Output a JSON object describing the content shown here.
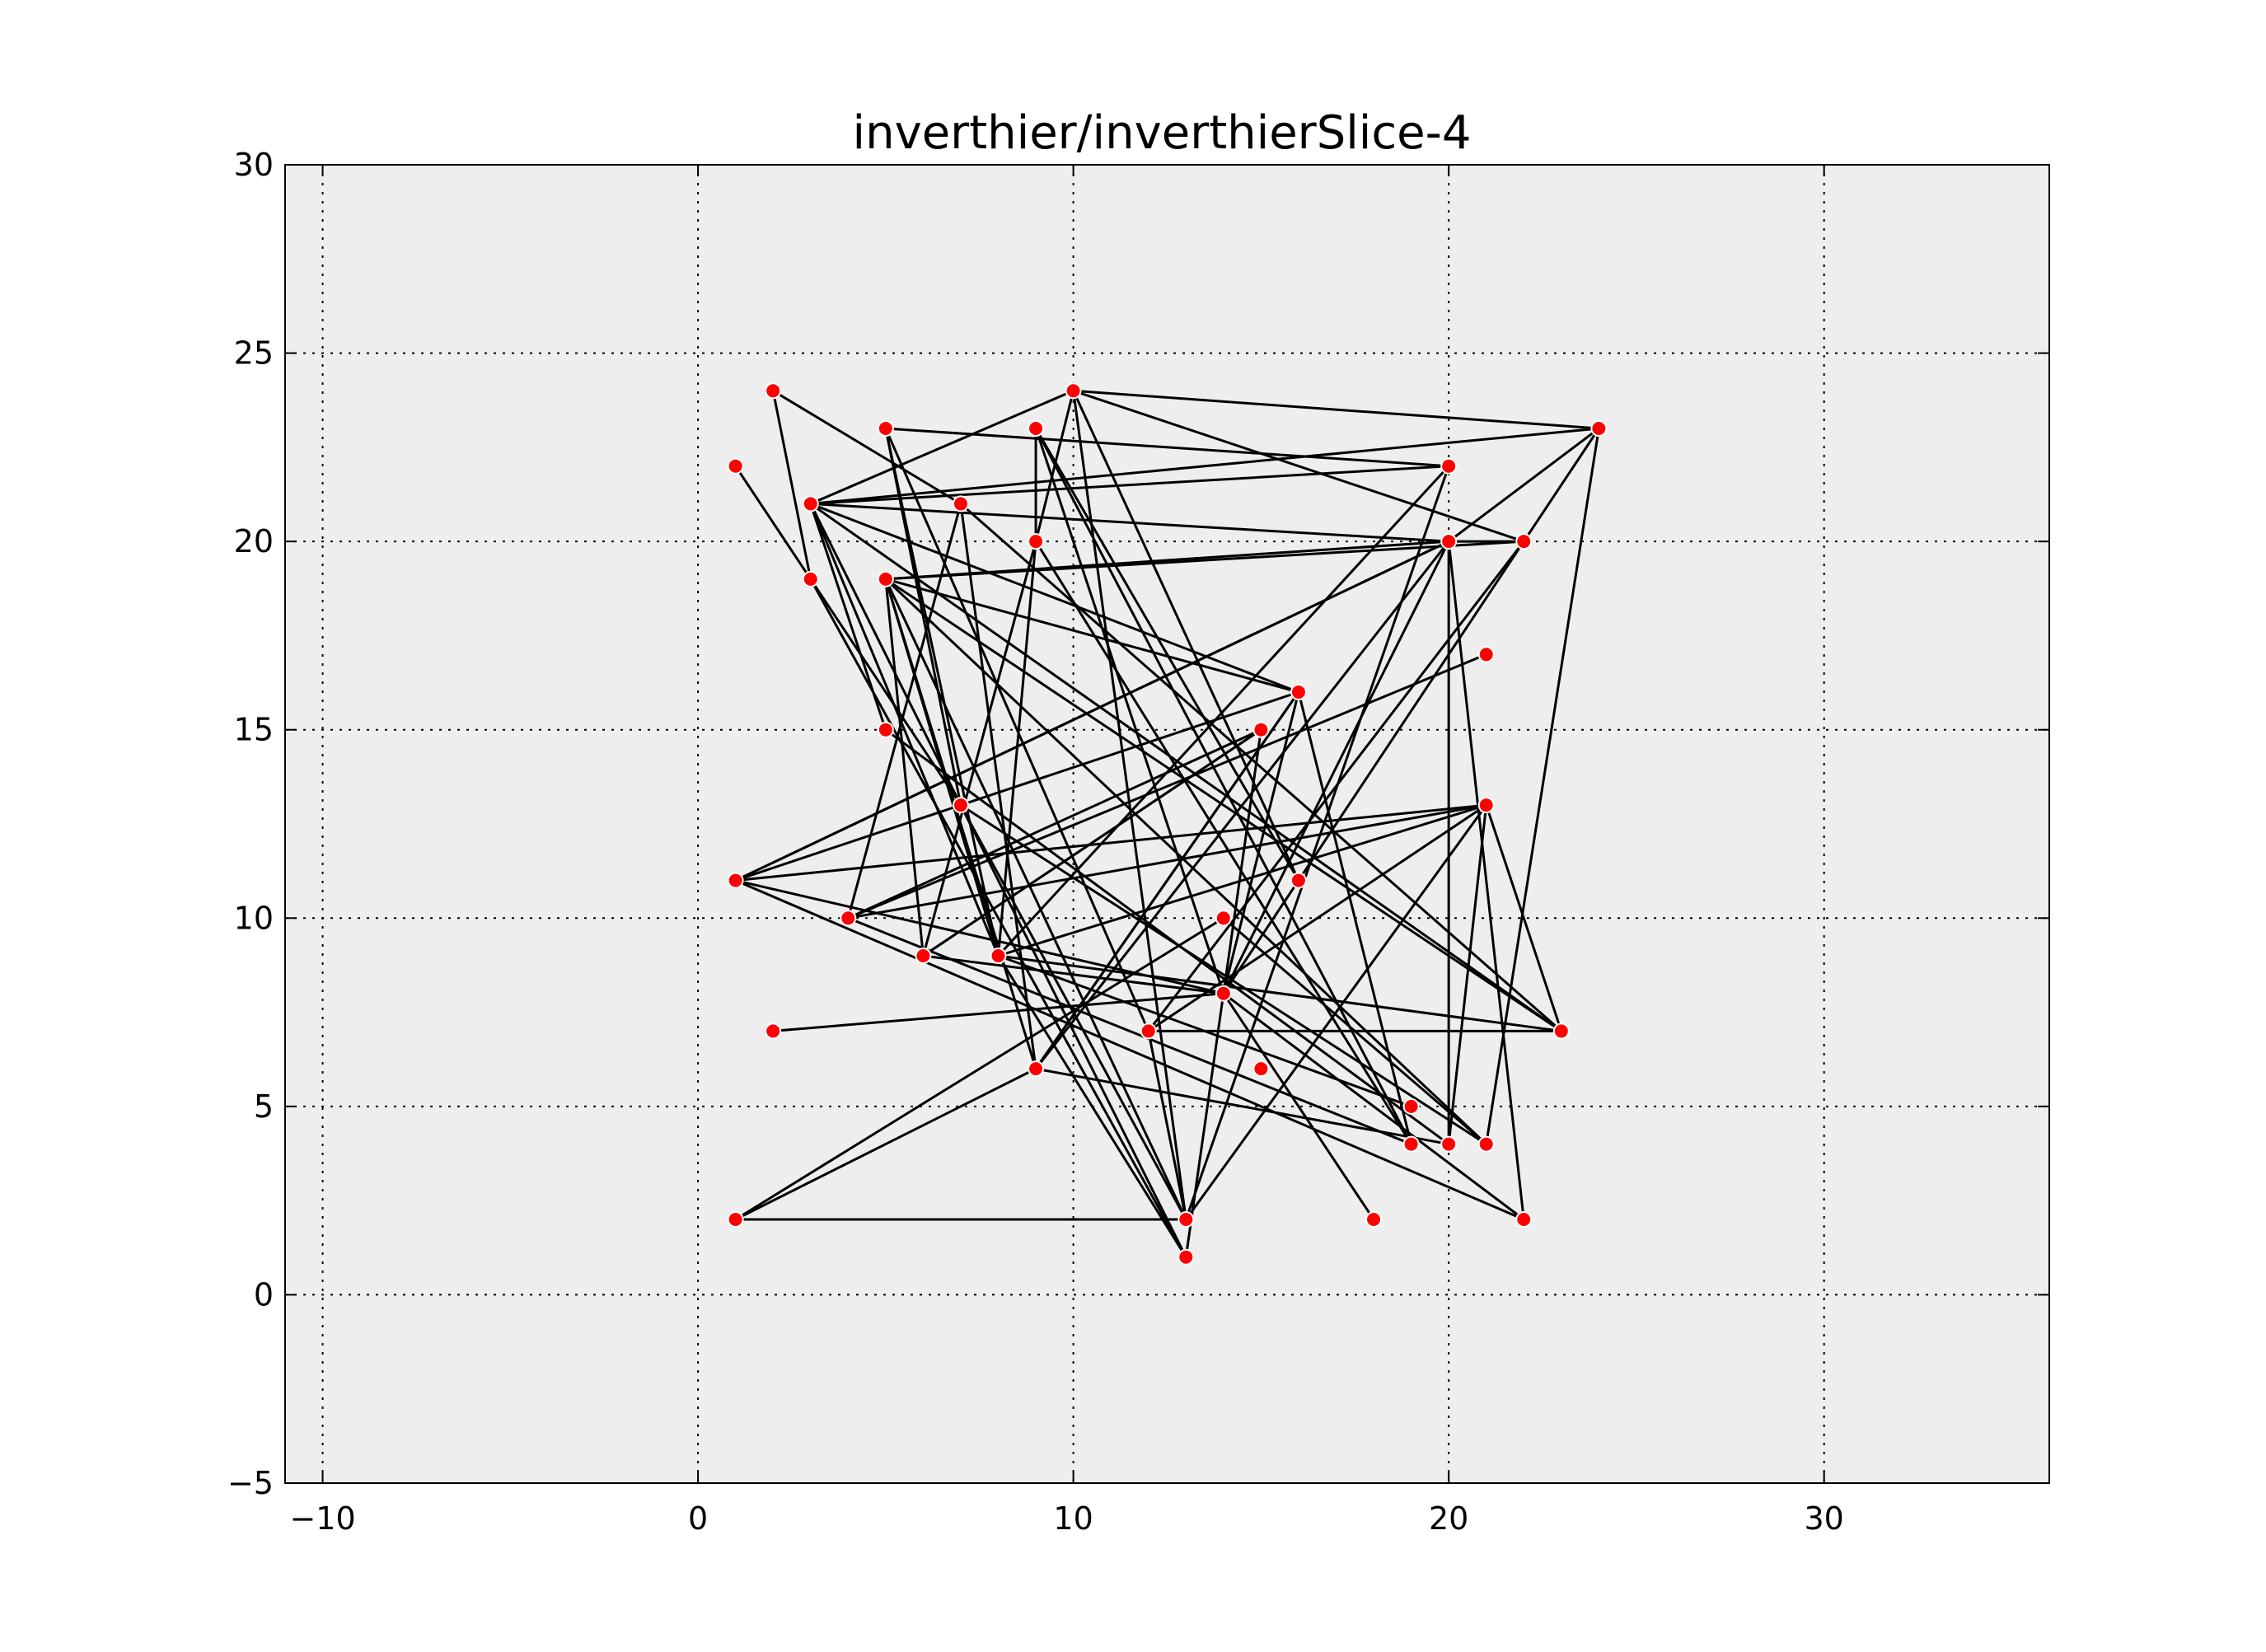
{
  "chart_data": {
    "type": "scatter",
    "title": "inverthier/inverthierSlice-4",
    "xlabel": "",
    "ylabel": "",
    "xlim": [
      -11,
      36
    ],
    "ylim": [
      -5,
      30
    ],
    "xticks": [
      -10,
      0,
      10,
      20,
      30
    ],
    "yticks": [
      -5,
      0,
      5,
      10,
      15,
      20,
      25,
      30
    ],
    "xtick_labels": [
      "−10",
      "0",
      "10",
      "20",
      "30"
    ],
    "ytick_labels": [
      "−5",
      "0",
      "5",
      "10",
      "15",
      "20",
      "25",
      "30"
    ],
    "grid": true,
    "background_color": "#eeeeee",
    "marker_color": "#ff0000",
    "line_color": "#000000",
    "nodes": [
      [
        2,
        24
      ],
      [
        10,
        24
      ],
      [
        5,
        23
      ],
      [
        9,
        23
      ],
      [
        24,
        23
      ],
      [
        1,
        22
      ],
      [
        20,
        22
      ],
      [
        3,
        21
      ],
      [
        7,
        21
      ],
      [
        9,
        20
      ],
      [
        20,
        20
      ],
      [
        22,
        20
      ],
      [
        3,
        19
      ],
      [
        5,
        19
      ],
      [
        21,
        17
      ],
      [
        16,
        16
      ],
      [
        5,
        15
      ],
      [
        15,
        15
      ],
      [
        7,
        13
      ],
      [
        21,
        13
      ],
      [
        1,
        11
      ],
      [
        16,
        11
      ],
      [
        4,
        10
      ],
      [
        14,
        10
      ],
      [
        6,
        9
      ],
      [
        8,
        9
      ],
      [
        14,
        8
      ],
      [
        2,
        7
      ],
      [
        12,
        7
      ],
      [
        23,
        7
      ],
      [
        9,
        6
      ],
      [
        15,
        6
      ],
      [
        19,
        5
      ],
      [
        19,
        4
      ],
      [
        20,
        4
      ],
      [
        21,
        4
      ],
      [
        1,
        2
      ],
      [
        13,
        2
      ],
      [
        18,
        2
      ],
      [
        22,
        2
      ],
      [
        13,
        1
      ]
    ],
    "edges": [
      [
        [
          2,
          24
        ],
        [
          3,
          19
        ]
      ],
      [
        [
          2,
          24
        ],
        [
          7,
          21
        ]
      ],
      [
        [
          10,
          24
        ],
        [
          24,
          23
        ]
      ],
      [
        [
          10,
          24
        ],
        [
          22,
          20
        ]
      ],
      [
        [
          10,
          24
        ],
        [
          16,
          11
        ]
      ],
      [
        [
          10,
          24
        ],
        [
          9,
          20
        ]
      ],
      [
        [
          10,
          24
        ],
        [
          3,
          21
        ]
      ],
      [
        [
          10,
          24
        ],
        [
          13,
          2
        ]
      ],
      [
        [
          5,
          23
        ],
        [
          20,
          22
        ]
      ],
      [
        [
          5,
          23
        ],
        [
          8,
          9
        ]
      ],
      [
        [
          5,
          23
        ],
        [
          12,
          7
        ]
      ],
      [
        [
          5,
          23
        ],
        [
          7,
          13
        ]
      ],
      [
        [
          9,
          23
        ],
        [
          9,
          20
        ]
      ],
      [
        [
          9,
          23
        ],
        [
          16,
          11
        ]
      ],
      [
        [
          9,
          23
        ],
        [
          14,
          8
        ]
      ],
      [
        [
          9,
          23
        ],
        [
          19,
          4
        ]
      ],
      [
        [
          24,
          23
        ],
        [
          3,
          21
        ]
      ],
      [
        [
          24,
          23
        ],
        [
          20,
          20
        ]
      ],
      [
        [
          24,
          23
        ],
        [
          21,
          4
        ]
      ],
      [
        [
          24,
          23
        ],
        [
          14,
          8
        ]
      ],
      [
        [
          1,
          22
        ],
        [
          7,
          13
        ]
      ],
      [
        [
          20,
          22
        ],
        [
          3,
          21
        ]
      ],
      [
        [
          20,
          22
        ],
        [
          8,
          9
        ]
      ],
      [
        [
          20,
          22
        ],
        [
          13,
          2
        ]
      ],
      [
        [
          3,
          21
        ],
        [
          20,
          20
        ]
      ],
      [
        [
          3,
          21
        ],
        [
          16,
          16
        ]
      ],
      [
        [
          3,
          21
        ],
        [
          23,
          7
        ]
      ],
      [
        [
          3,
          21
        ],
        [
          13,
          1
        ]
      ],
      [
        [
          3,
          21
        ],
        [
          8,
          9
        ]
      ],
      [
        [
          3,
          21
        ],
        [
          5,
          15
        ]
      ],
      [
        [
          7,
          21
        ],
        [
          9,
          6
        ]
      ],
      [
        [
          7,
          21
        ],
        [
          4,
          10
        ]
      ],
      [
        [
          7,
          21
        ],
        [
          23,
          7
        ]
      ],
      [
        [
          9,
          20
        ],
        [
          19,
          4
        ]
      ],
      [
        [
          9,
          20
        ],
        [
          8,
          9
        ]
      ],
      [
        [
          9,
          20
        ],
        [
          6,
          9
        ]
      ],
      [
        [
          20,
          20
        ],
        [
          22,
          20
        ]
      ],
      [
        [
          20,
          20
        ],
        [
          1,
          11
        ]
      ],
      [
        [
          20,
          20
        ],
        [
          20,
          4
        ]
      ],
      [
        [
          20,
          20
        ],
        [
          22,
          2
        ]
      ],
      [
        [
          20,
          20
        ],
        [
          9,
          6
        ]
      ],
      [
        [
          20,
          20
        ],
        [
          14,
          8
        ]
      ],
      [
        [
          22,
          20
        ],
        [
          5,
          19
        ]
      ],
      [
        [
          22,
          20
        ],
        [
          12,
          7
        ]
      ],
      [
        [
          3,
          19
        ],
        [
          13,
          1
        ]
      ],
      [
        [
          5,
          19
        ],
        [
          20,
          20
        ]
      ],
      [
        [
          5,
          19
        ],
        [
          6,
          9
        ]
      ],
      [
        [
          5,
          19
        ],
        [
          9,
          6
        ]
      ],
      [
        [
          5,
          19
        ],
        [
          16,
          16
        ]
      ],
      [
        [
          5,
          19
        ],
        [
          23,
          7
        ]
      ],
      [
        [
          5,
          19
        ],
        [
          21,
          4
        ]
      ],
      [
        [
          5,
          19
        ],
        [
          13,
          2
        ]
      ],
      [
        [
          5,
          19
        ],
        [
          8,
          9
        ]
      ],
      [
        [
          21,
          17
        ],
        [
          4,
          10
        ]
      ],
      [
        [
          16,
          16
        ],
        [
          1,
          11
        ]
      ],
      [
        [
          16,
          16
        ],
        [
          9,
          6
        ]
      ],
      [
        [
          16,
          16
        ],
        [
          19,
          4
        ]
      ],
      [
        [
          16,
          16
        ],
        [
          14,
          8
        ]
      ],
      [
        [
          5,
          15
        ],
        [
          20,
          4
        ]
      ],
      [
        [
          15,
          15
        ],
        [
          6,
          9
        ]
      ],
      [
        [
          15,
          15
        ],
        [
          13,
          1
        ]
      ],
      [
        [
          7,
          13
        ],
        [
          13,
          2
        ]
      ],
      [
        [
          7,
          13
        ],
        [
          21,
          4
        ]
      ],
      [
        [
          21,
          13
        ],
        [
          1,
          11
        ]
      ],
      [
        [
          21,
          13
        ],
        [
          4,
          10
        ]
      ],
      [
        [
          21,
          13
        ],
        [
          20,
          4
        ]
      ],
      [
        [
          21,
          13
        ],
        [
          12,
          7
        ]
      ],
      [
        [
          21,
          13
        ],
        [
          23,
          7
        ]
      ],
      [
        [
          1,
          11
        ],
        [
          14,
          8
        ]
      ],
      [
        [
          1,
          11
        ],
        [
          20,
          20
        ]
      ],
      [
        [
          1,
          11
        ],
        [
          22,
          2
        ]
      ],
      [
        [
          4,
          10
        ],
        [
          19,
          4
        ]
      ],
      [
        [
          4,
          10
        ],
        [
          15,
          15
        ]
      ],
      [
        [
          14,
          10
        ],
        [
          1,
          2
        ]
      ],
      [
        [
          14,
          10
        ],
        [
          21,
          4
        ]
      ],
      [
        [
          6,
          9
        ],
        [
          14,
          8
        ]
      ],
      [
        [
          6,
          9
        ],
        [
          15,
          15
        ]
      ],
      [
        [
          8,
          9
        ],
        [
          13,
          1
        ]
      ],
      [
        [
          8,
          9
        ],
        [
          23,
          7
        ]
      ],
      [
        [
          8,
          9
        ],
        [
          21,
          13
        ]
      ],
      [
        [
          14,
          8
        ],
        [
          22,
          2
        ]
      ],
      [
        [
          2,
          7
        ],
        [
          14,
          8
        ]
      ],
      [
        [
          12,
          7
        ],
        [
          13,
          2
        ]
      ],
      [
        [
          23,
          7
        ],
        [
          12,
          7
        ]
      ],
      [
        [
          9,
          6
        ],
        [
          20,
          4
        ]
      ],
      [
        [
          9,
          6
        ],
        [
          1,
          2
        ]
      ],
      [
        [
          9,
          6
        ],
        [
          16,
          16
        ]
      ],
      [
        [
          14,
          8
        ],
        [
          18,
          2
        ]
      ],
      [
        [
          1,
          2
        ],
        [
          13,
          2
        ]
      ],
      [
        [
          13,
          2
        ],
        [
          21,
          13
        ]
      ],
      [
        [
          19,
          5
        ],
        [
          8,
          9
        ]
      ]
    ]
  }
}
